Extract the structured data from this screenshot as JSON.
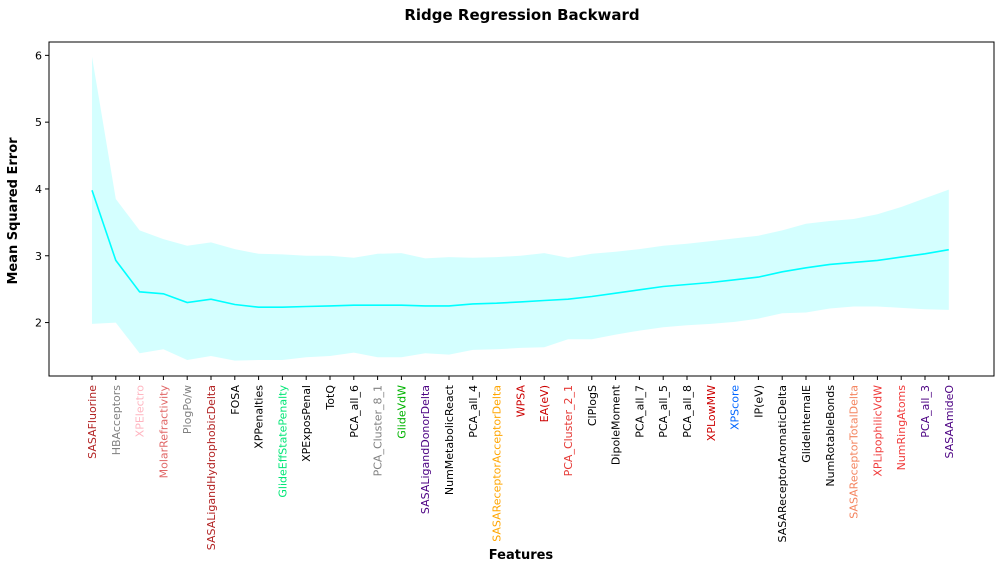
{
  "chart_data": {
    "type": "line",
    "title": "Ridge Regression Backward",
    "xlabel": "Features",
    "ylabel": "Mean Squared Error",
    "ylim": [
      1.2,
      6.2
    ],
    "yticks": [
      2,
      3,
      4,
      5,
      6
    ],
    "grid": false,
    "legend": "none",
    "line_color": "#00ffff",
    "band_color": "#ccffff",
    "categories": [
      {
        "label": "SASAFluorine",
        "color": "#b22222"
      },
      {
        "label": "HBAcceptors",
        "color": "#808080"
      },
      {
        "label": "XPElectro",
        "color": "#ffb6c1"
      },
      {
        "label": "MolarRefractivity",
        "color": "#e06666"
      },
      {
        "label": "PlogPo/w",
        "color": "#808080"
      },
      {
        "label": "SASALigandHydrophobicDelta",
        "color": "#b22222"
      },
      {
        "label": "FOSA",
        "color": "#000000"
      },
      {
        "label": "XPPenalties",
        "color": "#000000"
      },
      {
        "label": "GlideEffStatePenalty",
        "color": "#00e676"
      },
      {
        "label": "XPExposPenal",
        "color": "#000000"
      },
      {
        "label": "TotQ",
        "color": "#000000"
      },
      {
        "label": "PCA_all_6",
        "color": "#000000"
      },
      {
        "label": "PCA_Cluster_8_1",
        "color": "#808080"
      },
      {
        "label": "GlideVdW",
        "color": "#00b300"
      },
      {
        "label": "SASALigandDonorDelta",
        "color": "#4b0082"
      },
      {
        "label": "NumMetabolicReact",
        "color": "#000000"
      },
      {
        "label": "PCA_all_4",
        "color": "#000000"
      },
      {
        "label": "SASAReceptorAcceptorDelta",
        "color": "#ffa500"
      },
      {
        "label": "WPSA",
        "color": "#cc0000"
      },
      {
        "label": "EA(eV)",
        "color": "#cc0000"
      },
      {
        "label": "PCA_Cluster_2_1",
        "color": "#e53935"
      },
      {
        "label": "ClPlogS",
        "color": "#000000"
      },
      {
        "label": "DipoleMoment",
        "color": "#000000"
      },
      {
        "label": "PCA_all_7",
        "color": "#000000"
      },
      {
        "label": "PCA_all_5",
        "color": "#000000"
      },
      {
        "label": "PCA_all_8",
        "color": "#000000"
      },
      {
        "label": "XPLowMW",
        "color": "#cc0000"
      },
      {
        "label": "XPScore",
        "color": "#0066ff"
      },
      {
        "label": "IP(eV)",
        "color": "#000000"
      },
      {
        "label": "SASAReceptorAromaticDelta",
        "color": "#000000"
      },
      {
        "label": "GlideInternalE",
        "color": "#000000"
      },
      {
        "label": "NumRotableBonds",
        "color": "#000000"
      },
      {
        "label": "SASAReceptorTotalDelta",
        "color": "#f4845f"
      },
      {
        "label": "XPLipophilicVdW",
        "color": "#f03c3c"
      },
      {
        "label": "NumRingAtoms",
        "color": "#f03c3c"
      },
      {
        "label": "PCA_all_3",
        "color": "#4b0082"
      },
      {
        "label": "SASAAmideO",
        "color": "#4b0082"
      }
    ],
    "series": [
      {
        "mean": [
          3.98,
          2.93,
          2.46,
          2.43,
          2.3,
          2.35,
          2.27,
          2.23,
          2.23,
          2.24,
          2.25,
          2.26,
          2.26,
          2.26,
          2.25,
          2.25,
          2.28,
          2.29,
          2.31,
          2.33,
          2.35,
          2.39,
          2.44,
          2.49,
          2.54,
          2.57,
          2.6,
          2.64,
          2.68,
          2.76,
          2.82,
          2.87,
          2.9,
          2.93,
          2.98,
          3.03,
          3.09
        ],
        "upper": [
          5.98,
          3.85,
          3.38,
          3.25,
          3.15,
          3.2,
          3.1,
          3.03,
          3.02,
          3.0,
          3.0,
          2.97,
          3.03,
          3.04,
          2.96,
          2.98,
          2.97,
          2.98,
          3.0,
          3.04,
          2.97,
          3.03,
          3.06,
          3.1,
          3.15,
          3.18,
          3.22,
          3.26,
          3.3,
          3.38,
          3.48,
          3.52,
          3.55,
          3.62,
          3.73,
          3.86,
          3.99
        ],
        "lower": [
          1.98,
          2.0,
          1.54,
          1.6,
          1.44,
          1.5,
          1.43,
          1.44,
          1.44,
          1.48,
          1.5,
          1.55,
          1.48,
          1.48,
          1.54,
          1.52,
          1.59,
          1.6,
          1.62,
          1.63,
          1.75,
          1.75,
          1.82,
          1.88,
          1.93,
          1.96,
          1.98,
          2.01,
          2.06,
          2.14,
          2.15,
          2.21,
          2.24,
          2.24,
          2.22,
          2.2,
          2.19
        ]
      }
    ]
  }
}
